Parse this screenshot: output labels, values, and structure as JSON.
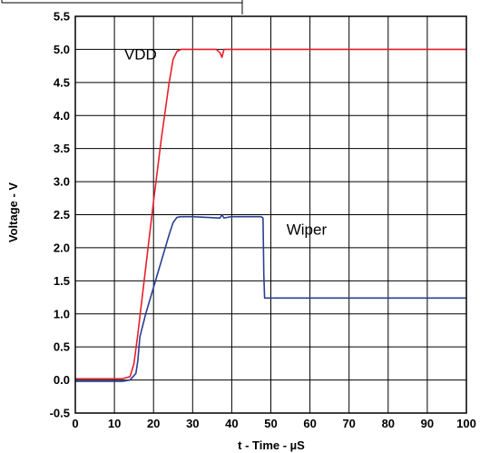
{
  "chart_data": {
    "type": "line",
    "xlabel": "t - Time - µS",
    "ylabel": "Voltage - V",
    "xlim": [
      0,
      100
    ],
    "ylim": [
      -0.5,
      5.5
    ],
    "grid": true,
    "x_ticks": [
      "0",
      "10",
      "20",
      "30",
      "40",
      "50",
      "60",
      "70",
      "80",
      "90",
      "100"
    ],
    "y_ticks": [
      "-0.5",
      "0.0",
      "0.5",
      "1.0",
      "1.5",
      "2.0",
      "2.5",
      "3.0",
      "3.5",
      "4.0",
      "4.5",
      "5.0",
      "5.5"
    ],
    "series": [
      {
        "name": "VDD",
        "color": "#e8202a",
        "x": [
          0,
          12,
          14,
          15,
          16,
          18,
          20,
          22,
          24,
          25,
          26,
          27,
          28,
          30,
          35,
          36,
          37,
          37.5,
          38,
          40,
          50,
          60,
          70,
          80,
          90,
          100
        ],
        "y": [
          0.02,
          0.02,
          0.05,
          0.25,
          0.7,
          1.7,
          2.7,
          3.65,
          4.5,
          4.85,
          4.97,
          5.0,
          5.0,
          5.0,
          5.0,
          5.0,
          4.95,
          4.88,
          5.0,
          5.0,
          5.0,
          5.0,
          5.0,
          5.0,
          5.0,
          5.0
        ]
      },
      {
        "name": "Wiper",
        "color": "#2b3f95",
        "x": [
          0,
          12,
          14,
          15.5,
          16,
          16.5,
          18,
          20,
          22,
          24,
          25,
          26,
          27,
          30,
          37,
          37.5,
          38,
          40,
          45,
          47.5,
          48,
          48.2,
          48.4,
          50,
          60,
          70,
          80,
          90,
          100
        ],
        "y": [
          -0.02,
          -0.02,
          0.0,
          0.1,
          0.3,
          0.65,
          1.0,
          1.4,
          1.8,
          2.2,
          2.38,
          2.46,
          2.47,
          2.47,
          2.45,
          2.5,
          2.45,
          2.47,
          2.47,
          2.47,
          2.45,
          1.6,
          1.24,
          1.24,
          1.24,
          1.24,
          1.24,
          1.24,
          1.24
        ]
      }
    ],
    "annotations": [
      {
        "text": "VDD",
        "x": 12.5,
        "y": 4.85
      },
      {
        "text": "Wiper",
        "x": 54,
        "y": 2.2
      }
    ]
  }
}
